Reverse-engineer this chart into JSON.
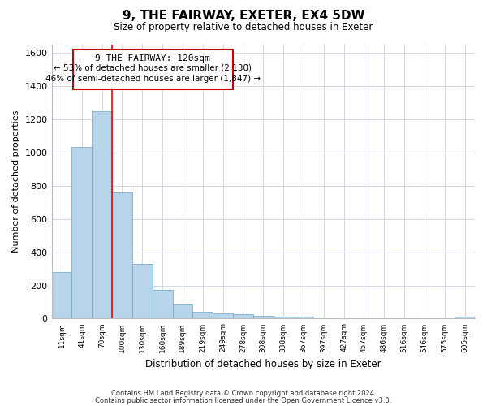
{
  "title": "9, THE FAIRWAY, EXETER, EX4 5DW",
  "subtitle": "Size of property relative to detached houses in Exeter",
  "xlabel": "Distribution of detached houses by size in Exeter",
  "ylabel": "Number of detached properties",
  "bar_color": "#b8d4e8",
  "bar_edge_color": "#7aaecf",
  "bin_labels": [
    "11sqm",
    "41sqm",
    "70sqm",
    "100sqm",
    "130sqm",
    "160sqm",
    "189sqm",
    "219sqm",
    "249sqm",
    "278sqm",
    "308sqm",
    "338sqm",
    "367sqm",
    "397sqm",
    "427sqm",
    "457sqm",
    "486sqm",
    "516sqm",
    "546sqm",
    "575sqm",
    "605sqm"
  ],
  "bar_heights": [
    280,
    1035,
    1250,
    760,
    330,
    175,
    85,
    40,
    30,
    25,
    15,
    10,
    10,
    0,
    0,
    0,
    0,
    0,
    0,
    0,
    10
  ],
  "ylim": [
    0,
    1650
  ],
  "yticks": [
    0,
    200,
    400,
    600,
    800,
    1000,
    1200,
    1400,
    1600
  ],
  "property_line_label": "9 THE FAIRWAY: 120sqm",
  "annotation_line1": "← 53% of detached houses are smaller (2,130)",
  "annotation_line2": "46% of semi-detached houses are larger (1,847) →",
  "box_edge_color": "#cc0000",
  "footer1": "Contains HM Land Registry data © Crown copyright and database right 2024.",
  "footer2": "Contains public sector information licensed under the Open Government Licence v3.0."
}
